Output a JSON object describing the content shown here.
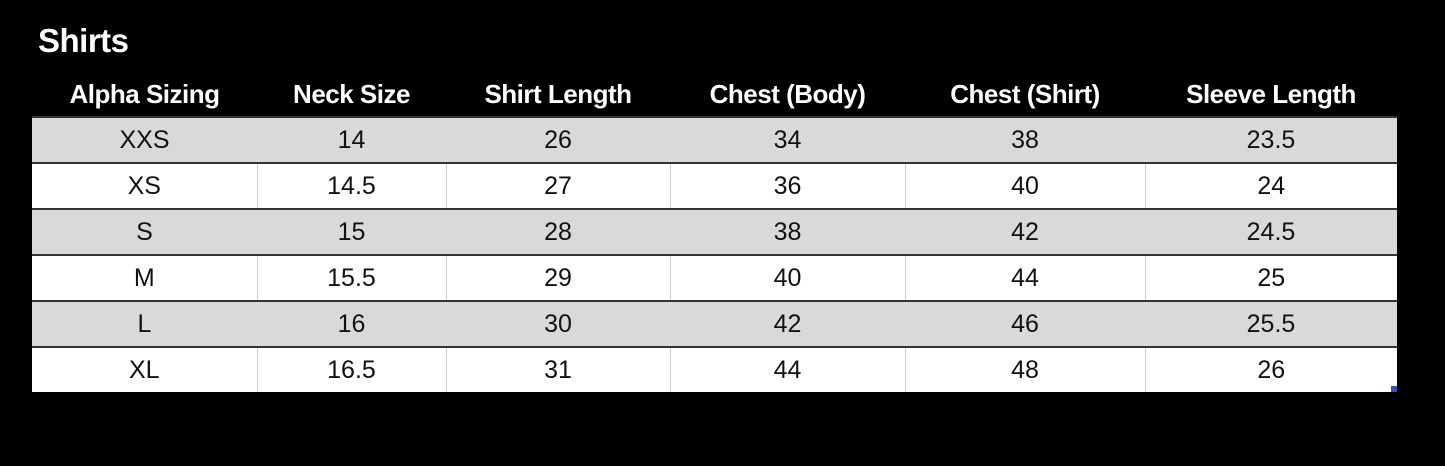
{
  "title": "Shirts",
  "table": {
    "headers": [
      "Alpha Sizing",
      "Neck Size",
      "Shirt Length",
      "Chest (Body)",
      "Chest (Shirt)",
      "Sleeve Length"
    ],
    "rows": [
      [
        "XXS",
        "14",
        "26",
        "34",
        "38",
        "23.5"
      ],
      [
        "XS",
        "14.5",
        "27",
        "36",
        "40",
        "24"
      ],
      [
        "S",
        "15",
        "28",
        "38",
        "42",
        "24.5"
      ],
      [
        "M",
        "15.5",
        "29",
        "40",
        "44",
        "25"
      ],
      [
        "L",
        "16",
        "30",
        "42",
        "46",
        "25.5"
      ],
      [
        "XL",
        "16.5",
        "31",
        "44",
        "48",
        "26"
      ]
    ]
  },
  "colors": {
    "background": "#000000",
    "band_row": "#d9d9d9",
    "plain_row": "#ffffff",
    "selection_handle": "#3c4fb4"
  }
}
